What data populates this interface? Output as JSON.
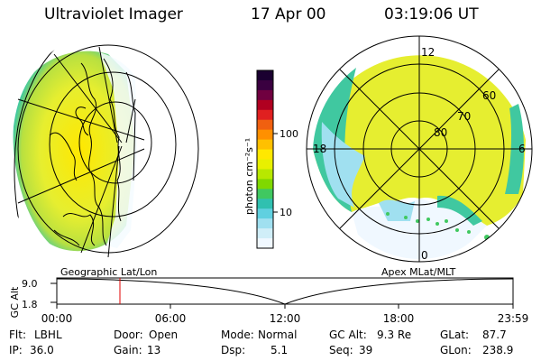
{
  "header": {
    "instrument": "Ultraviolet Imager",
    "date": "17 Apr 00",
    "time": "03:19:06 UT"
  },
  "left_map": {
    "label": "Geographic Lat/Lon"
  },
  "right_map": {
    "label": "Apex MLat/MLT",
    "mlt_labels": [
      "12",
      "18",
      "6",
      "0"
    ],
    "lat_labels": [
      "60",
      "70",
      "80"
    ]
  },
  "colorbar": {
    "unit_label": "photon cm⁻²s⁻¹",
    "ticks": [
      "100",
      "10"
    ],
    "colors": [
      "#1a0030",
      "#3a0040",
      "#700040",
      "#b00020",
      "#e02020",
      "#f06010",
      "#ff9000",
      "#ffc000",
      "#ffe800",
      "#e8f000",
      "#b8e800",
      "#80d800",
      "#40c860",
      "#30c0b0",
      "#60d0e0",
      "#a0e0f0",
      "#d0eef8",
      "#f0f8ff"
    ]
  },
  "altitude_plot": {
    "axis_label": "GC Alt",
    "y_ticks": [
      "9.0",
      "1.8"
    ],
    "x_ticks": [
      "00:00",
      "06:00",
      "12:00",
      "18:00",
      "23:59"
    ],
    "marker_time": "03:19"
  },
  "info": {
    "flt_label": "Flt:",
    "flt_value": "LBHL",
    "door_label": "Door:",
    "door_value": "Open",
    "mode_label": "Mode:",
    "mode_value": "Normal",
    "gcalt_label": "GC Alt:",
    "gcalt_value": "9.3 Re",
    "glat_label": "GLat:",
    "glat_value": "87.7",
    "ip_label": "IP:",
    "ip_value": "36.0",
    "gain_label": "Gain:",
    "gain_value": "13",
    "dsp_label": "Dsp:",
    "dsp_value": "5.1",
    "seq_label": "Seq:",
    "seq_value": "39",
    "glon_label": "GLon:",
    "glon_value": "238.9"
  }
}
